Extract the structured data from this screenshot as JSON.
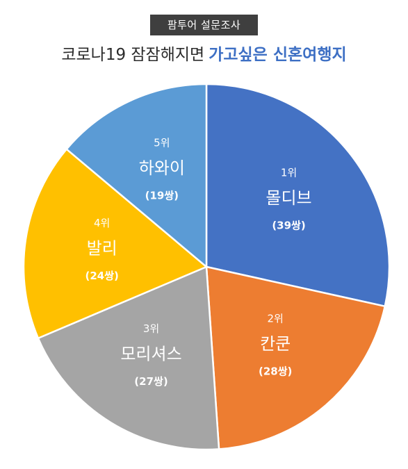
{
  "header": {
    "badge": "팜투어 설문조사",
    "title_plain": "코로나19 잠잠해지면",
    "title_highlight": "가고싶은 신혼여행지"
  },
  "chart_data": {
    "type": "pie",
    "title": "코로나19 잠잠해지면 가고싶은 신혼여행지",
    "start_angle_deg": 0,
    "direction": "clockwise",
    "slices": [
      {
        "rank": "1위",
        "name": "몰디브",
        "count": "(39쌍)",
        "value": 39,
        "color": "#4472c4"
      },
      {
        "rank": "2위",
        "name": "칸쿤",
        "count": "(28쌍)",
        "value": 28,
        "color": "#ed7d31"
      },
      {
        "rank": "3위",
        "name": "모리셔스",
        "count": "(27쌍)",
        "value": 27,
        "color": "#a5a5a5"
      },
      {
        "rank": "4위",
        "name": "발리",
        "count": "(24쌍)",
        "value": 24,
        "color": "#ffc000"
      },
      {
        "rank": "5위",
        "name": "하와이",
        "count": "(19쌍)",
        "value": 19,
        "color": "#5b9bd5"
      }
    ]
  }
}
